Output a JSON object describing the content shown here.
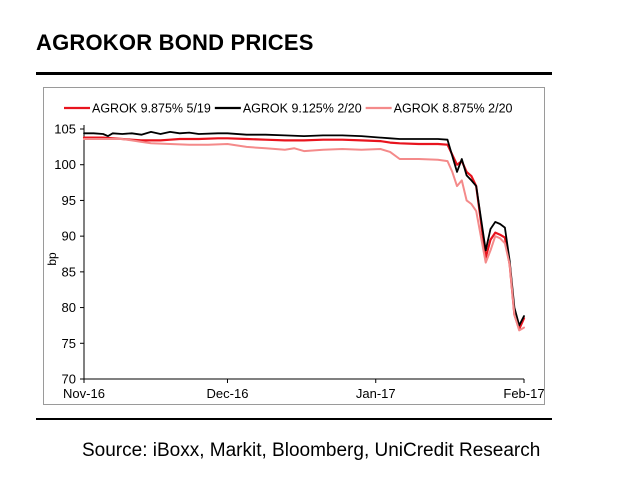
{
  "title": "AGROKOR BOND PRICES",
  "source": "Source: iBoxx, Markit, Bloomberg, UniCredit Research",
  "chart_data": {
    "type": "line",
    "ylabel": "bp",
    "xlabel": "",
    "ylim": [
      70,
      105
    ],
    "yticks": [
      70,
      75,
      80,
      85,
      90,
      95,
      100,
      105
    ],
    "xlim": [
      0,
      92
    ],
    "xticks": [
      {
        "label": "Nov-16",
        "x": 0
      },
      {
        "label": "Dec-16",
        "x": 30
      },
      {
        "label": "Jan-17",
        "x": 61
      },
      {
        "label": "Feb-17",
        "x": 92
      }
    ],
    "legend_position": "top",
    "series": [
      {
        "name": "AGROK 9.875% 5/19",
        "color": "#e8141e",
        "width": 2.2,
        "x": [
          0,
          2,
          4,
          6,
          8,
          10,
          12,
          14,
          16,
          18,
          20,
          24,
          28,
          30,
          34,
          38,
          42,
          46,
          50,
          54,
          58,
          62,
          64,
          66,
          70,
          74,
          76,
          78,
          79,
          80,
          81,
          82,
          84,
          85,
          86,
          87,
          88,
          89,
          90,
          91,
          92
        ],
        "y": [
          103.8,
          103.8,
          103.8,
          103.7,
          103.6,
          103.5,
          103.4,
          103.4,
          103.4,
          103.5,
          103.6,
          103.6,
          103.7,
          103.7,
          103.6,
          103.5,
          103.4,
          103.4,
          103.5,
          103.5,
          103.4,
          103.3,
          103.1,
          103.0,
          102.9,
          102.9,
          102.8,
          100.0,
          100.5,
          99.0,
          98.4,
          97.0,
          87.0,
          89.5,
          90.5,
          90.2,
          89.8,
          86.0,
          79.0,
          77.0,
          78.5
        ]
      },
      {
        "name": "AGROK 9.125% 2/20",
        "color": "#000000",
        "width": 1.8,
        "x": [
          0,
          2,
          4,
          5,
          6,
          8,
          10,
          12,
          14,
          16,
          18,
          20,
          22,
          24,
          28,
          30,
          34,
          38,
          42,
          46,
          50,
          54,
          58,
          62,
          64,
          66,
          70,
          74,
          76,
          78,
          79,
          80,
          81,
          82,
          84,
          85,
          86,
          87,
          88,
          89,
          90,
          91,
          92
        ],
        "y": [
          104.4,
          104.4,
          104.3,
          104.0,
          104.4,
          104.3,
          104.4,
          104.2,
          104.6,
          104.3,
          104.6,
          104.4,
          104.5,
          104.3,
          104.4,
          104.4,
          104.2,
          104.2,
          104.1,
          104.0,
          104.1,
          104.1,
          104.0,
          103.8,
          103.7,
          103.6,
          103.6,
          103.6,
          103.5,
          99.0,
          100.8,
          98.5,
          97.8,
          97.0,
          88.0,
          91.0,
          92.0,
          91.7,
          91.2,
          86.5,
          80.0,
          77.5,
          78.8
        ]
      },
      {
        "name": "AGROK 8.875% 2/20",
        "color": "#f48a8a",
        "width": 2.0,
        "x": [
          0,
          4,
          8,
          10,
          12,
          14,
          18,
          22,
          26,
          30,
          34,
          38,
          42,
          44,
          46,
          50,
          54,
          58,
          62,
          64,
          66,
          70,
          74,
          76,
          77,
          78,
          79,
          80,
          81,
          82,
          84,
          85,
          86,
          87,
          88,
          89,
          90,
          91,
          92
        ],
        "y": [
          103.6,
          103.6,
          103.6,
          103.4,
          103.2,
          103.0,
          102.9,
          102.8,
          102.8,
          102.9,
          102.5,
          102.3,
          102.1,
          102.3,
          101.9,
          102.1,
          102.2,
          102.1,
          102.2,
          101.8,
          100.8,
          100.8,
          100.7,
          100.5,
          99.0,
          97.0,
          97.8,
          95.0,
          94.5,
          93.5,
          86.3,
          88.0,
          90.0,
          89.7,
          89.0,
          86.0,
          79.0,
          76.8,
          77.2
        ]
      }
    ]
  }
}
